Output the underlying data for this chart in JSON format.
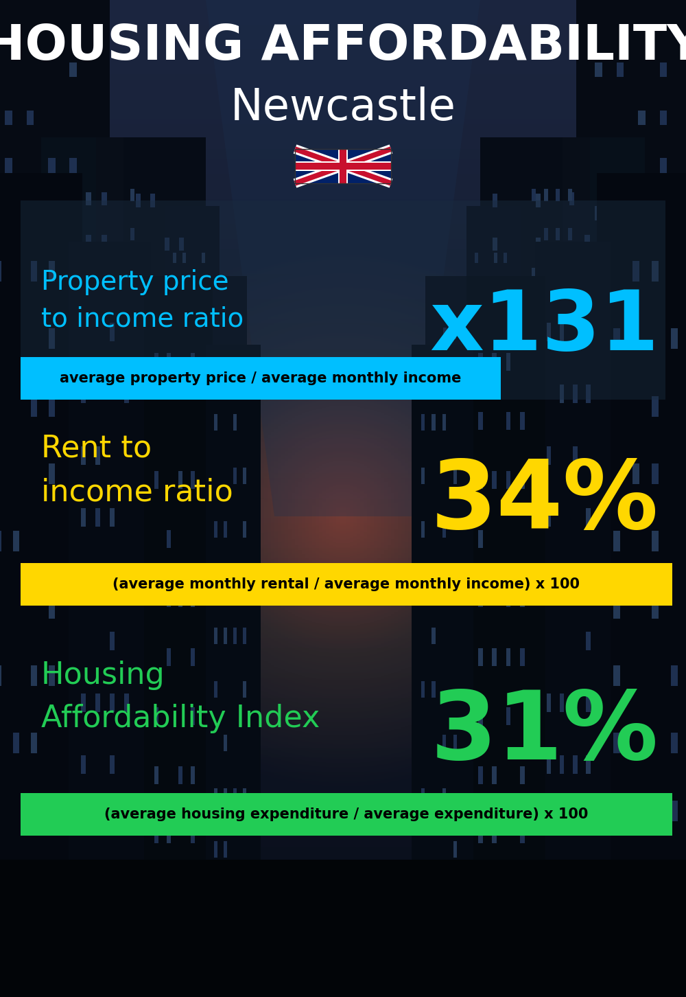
{
  "title_line1": "HOUSING AFFORDABILITY",
  "title_line2": "Newcastle",
  "section1_label": "Property price\nto income ratio",
  "section1_value": "x131",
  "section1_label_color": "#00BFFF",
  "section1_value_color": "#00BFFF",
  "section1_formula": "average property price / average monthly income",
  "section1_formula_bg": "#00BFFF",
  "section2_label": "Rent to\nincome ratio",
  "section2_value": "34%",
  "section2_label_color": "#FFD700",
  "section2_value_color": "#FFD700",
  "section2_formula": "(average monthly rental / average monthly income) x 100",
  "section2_formula_bg": "#FFD700",
  "section3_label": "Housing\nAffordability Index",
  "section3_value": "31%",
  "section3_label_color": "#22CC55",
  "section3_value_color": "#22CC55",
  "section3_formula": "(average housing expenditure / average expenditure) x 100",
  "section3_formula_bg": "#22CC55",
  "bg_color": "#080d18",
  "title_color": "#FFFFFF",
  "subtitle_color": "#FFFFFF",
  "formula_text_color": "#000000"
}
